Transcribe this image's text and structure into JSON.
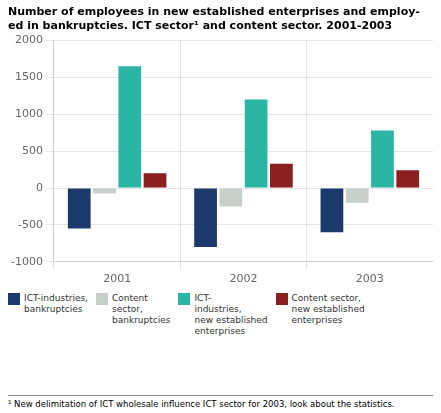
{
  "chart_data": {
    "type": "bar",
    "title": "Number of employees in new established enterprises and employ-\ned in bankruptcies. ICT sector¹ and content sector. 2001-2003",
    "categories": [
      "2001",
      "2002",
      "2003"
    ],
    "series": [
      {
        "name": "ICT-industries,\nbankruptcies",
        "color": "#1b3a6b",
        "values": [
          -550,
          -800,
          -600
        ]
      },
      {
        "name": "Content\nsector,\nbankruptcies",
        "color": "#c8cec8",
        "values": [
          -75,
          -250,
          -200
        ]
      },
      {
        "name": "ICT-\nindustries,\nnew established\nenterprises",
        "color": "#2ab5a5",
        "values": [
          1650,
          1200,
          780
        ]
      },
      {
        "name": "Content sector,\nnew established\nenterprises",
        "color": "#8b2020",
        "values": [
          200,
          330,
          240
        ]
      }
    ],
    "ylim": [
      -1000,
      2000
    ],
    "yticks": [
      -1000,
      -500,
      0,
      500,
      1000,
      1500,
      2000
    ],
    "grid": true,
    "annotations": [
      "¹ New delimitation of ICT wholesale influence ICT sector for 2003, look about the statistics."
    ]
  }
}
